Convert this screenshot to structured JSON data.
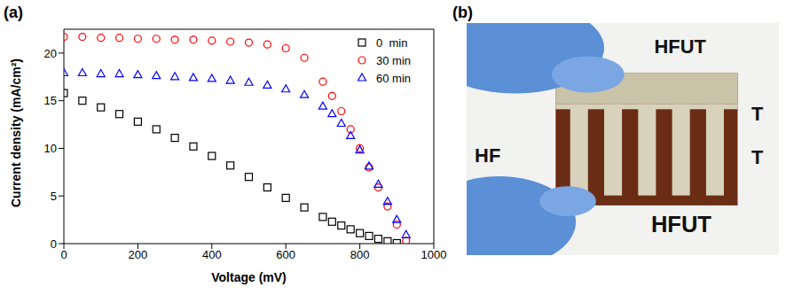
{
  "chart_data": {
    "type": "scatter",
    "panel": "(a)",
    "x_label": "Voltage (mV)",
    "y_label": "Current density (mA/cm²)",
    "xlim": [
      0,
      1000
    ],
    "xticks": [
      0,
      200,
      400,
      600,
      800,
      1000
    ],
    "ylim": [
      0,
      22.5
    ],
    "yticks": [
      0,
      5,
      10,
      15,
      20
    ],
    "legend": "upper right",
    "x": [
      0,
      50,
      100,
      150,
      200,
      250,
      300,
      350,
      400,
      450,
      500,
      550,
      600,
      650,
      700,
      725,
      750,
      775,
      800,
      825,
      850,
      875,
      900,
      925,
      950
    ],
    "series": [
      {
        "name": "0  min",
        "color": "#000000",
        "marker": "square",
        "values": [
          15.8,
          15.0,
          14.3,
          13.6,
          12.8,
          12.0,
          11.1,
          10.2,
          9.2,
          8.2,
          7.0,
          5.9,
          4.8,
          3.8,
          2.8,
          2.3,
          1.9,
          1.5,
          1.1,
          0.8,
          0.5,
          0.25,
          0.05,
          null,
          null
        ]
      },
      {
        "name": "30 min",
        "color": "#ff0000",
        "marker": "circle",
        "values": [
          21.7,
          21.7,
          21.6,
          21.6,
          21.5,
          21.5,
          21.4,
          21.4,
          21.3,
          21.2,
          21.1,
          20.9,
          20.5,
          19.5,
          17.0,
          15.5,
          13.9,
          12.0,
          10.0,
          8.0,
          5.9,
          3.9,
          2.0,
          0.3,
          null
        ]
      },
      {
        "name": "60 min",
        "color": "#0000ff",
        "marker": "triangle",
        "values": [
          17.9,
          17.9,
          17.8,
          17.8,
          17.7,
          17.6,
          17.5,
          17.4,
          17.3,
          17.1,
          16.9,
          16.6,
          16.2,
          15.6,
          14.4,
          13.6,
          12.6,
          11.3,
          9.8,
          8.1,
          6.2,
          4.4,
          2.5,
          0.9,
          null
        ]
      }
    ]
  },
  "photo": {
    "panel": "(b)",
    "texts": [
      "HFUT",
      "T",
      "HF",
      "T",
      "HFUT"
    ]
  }
}
